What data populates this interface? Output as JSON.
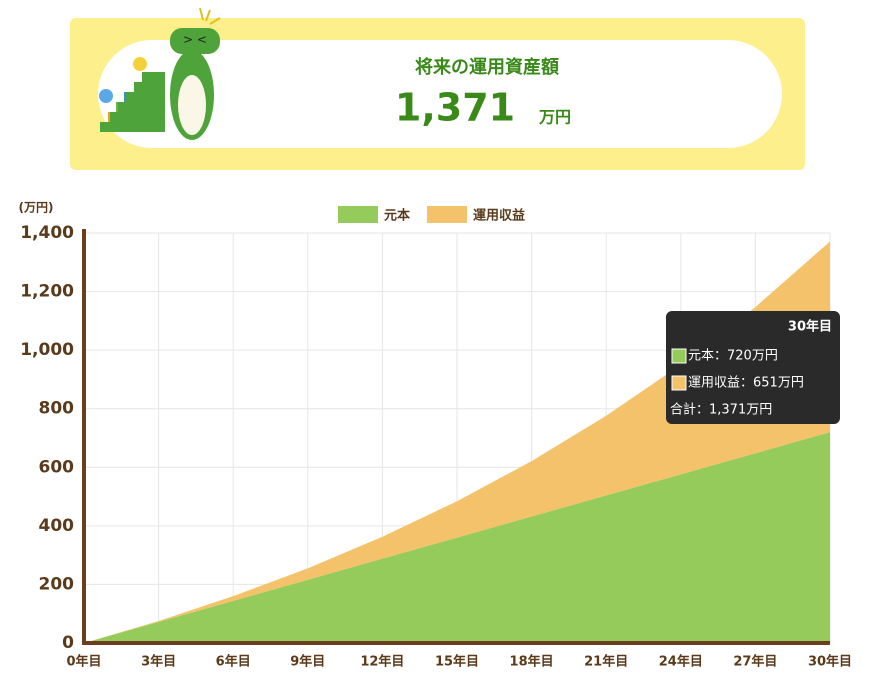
{
  "header": {
    "title": "将来の運用資産額",
    "amount": "1,371",
    "unit": "万円"
  },
  "chart_data": {
    "type": "stacked-area",
    "y_label": "(万円)",
    "categories": [
      "0年目",
      "3年目",
      "6年目",
      "9年目",
      "12年目",
      "15年目",
      "18年目",
      "21年目",
      "24年目",
      "27年目",
      "30年目"
    ],
    "series": [
      {
        "name": "元本",
        "color": "#95cb5a",
        "values": [
          0,
          72,
          144,
          216,
          288,
          360,
          432,
          504,
          576,
          648,
          720
        ]
      },
      {
        "name": "運用収益",
        "color": "#f3c26a",
        "values": [
          0,
          3,
          16,
          39,
          75,
          124,
          189,
          272,
          374,
          499,
          651
        ]
      }
    ],
    "ylim": [
      0,
      1400
    ],
    "yticks": [
      0,
      200,
      400,
      600,
      800,
      {
        "value": 1000,
        "label": "1,000"
      },
      {
        "value": 1200,
        "label": "1,200"
      },
      {
        "value": 1400,
        "label": "1,400"
      }
    ],
    "grid": true,
    "legend": "top"
  },
  "tooltip": {
    "title": "30年目",
    "lines": [
      "元本：720万円",
      "運用収益：651万円",
      "合計：1,371万円"
    ]
  }
}
